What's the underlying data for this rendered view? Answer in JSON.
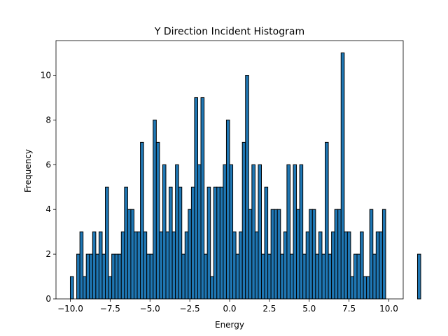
{
  "chart_data": {
    "type": "bar",
    "title": "Y Direction Incident Histogram",
    "xlabel": "Energy",
    "ylabel": "Frequency",
    "xlim": [
      -10.9,
      10.9
    ],
    "ylim": [
      0,
      11.55
    ],
    "bin_start": -10.0,
    "bin_width": 0.2,
    "values": [
      1,
      0,
      2,
      3,
      1,
      2,
      2,
      3,
      2,
      3,
      2,
      5,
      1,
      2,
      2,
      2,
      3,
      5,
      4,
      4,
      3,
      3,
      7,
      3,
      2,
      2,
      8,
      7,
      3,
      6,
      3,
      5,
      3,
      6,
      5,
      2,
      3,
      4,
      5,
      9,
      6,
      9,
      2,
      5,
      1,
      5,
      5,
      5,
      6,
      8,
      6,
      3,
      2,
      3,
      7,
      10,
      4,
      6,
      3,
      6,
      2,
      5,
      2,
      4,
      4,
      4,
      2,
      3,
      6,
      2,
      6,
      4,
      6,
      2,
      3,
      4,
      4,
      2,
      3,
      2,
      7,
      2,
      3,
      4,
      4,
      11,
      3,
      3,
      1,
      2,
      2,
      3,
      1,
      1,
      4,
      2,
      3,
      3,
      4,
      0,
      0,
      0,
      0,
      0,
      0,
      0,
      0,
      0,
      0,
      2
    ],
    "xticks": [
      "-10.0",
      "-7.5",
      "-5.0",
      "-2.5",
      "0.0",
      "2.5",
      "5.0",
      "7.5",
      "10.0"
    ],
    "yticks": [
      "0",
      "2",
      "4",
      "6",
      "8",
      "10"
    ],
    "bar_color": "#1f77b4",
    "edge_color": "#000000",
    "grid": false
  }
}
